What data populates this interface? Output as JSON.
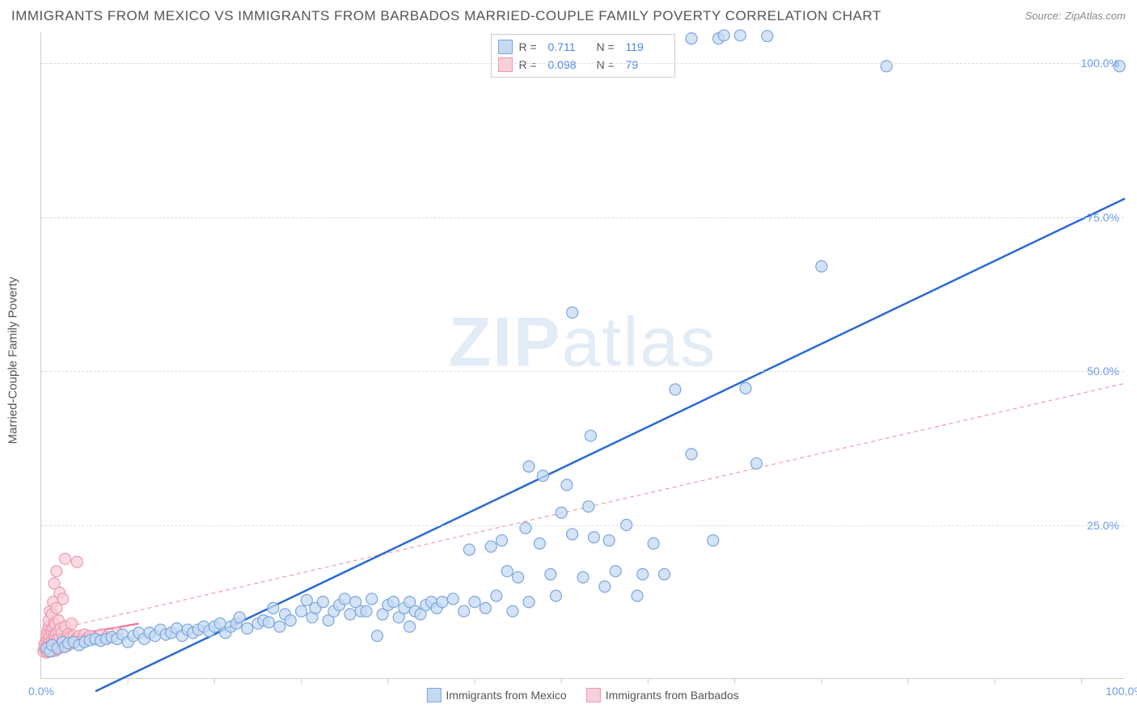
{
  "title": "IMMIGRANTS FROM MEXICO VS IMMIGRANTS FROM BARBADOS MARRIED-COUPLE FAMILY POVERTY CORRELATION CHART",
  "source_label": "Source:",
  "source_value": "ZipAtlas.com",
  "y_axis_label": "Married-Couple Family Poverty",
  "watermark_a": "ZIP",
  "watermark_b": "atlas",
  "chart": {
    "type": "scatter",
    "xlim": [
      0,
      100
    ],
    "ylim": [
      0,
      105
    ],
    "y_ticks": [
      25,
      50,
      75,
      100
    ],
    "y_tick_labels": [
      "25.0%",
      "50.0%",
      "75.0%",
      "100.0%"
    ],
    "x_ticks_labeled": [
      0,
      100
    ],
    "x_tick_labels": [
      "0.0%",
      "100.0%"
    ],
    "x_minor_ticks": [
      8,
      16,
      24,
      32,
      40,
      48,
      56,
      64,
      72,
      80,
      88,
      96
    ],
    "background_color": "#ffffff",
    "grid_color": "#dddddd",
    "marker_radius": 7,
    "marker_stroke_width": 1.2,
    "series": [
      {
        "name": "Immigrants from Mexico",
        "color_fill": "#c5d9f1",
        "color_stroke": "#7aa7e0",
        "r_value": "0.711",
        "n_value": "119",
        "trend": {
          "x1": 5,
          "y1": -2,
          "x2": 100,
          "y2": 78,
          "width": 2.5,
          "color": "#2a6ad4",
          "dash": ""
        },
        "points": [
          [
            0.5,
            5
          ],
          [
            0.8,
            4.5
          ],
          [
            1,
            5.5
          ],
          [
            1.5,
            5
          ],
          [
            2,
            6
          ],
          [
            2.2,
            5.2
          ],
          [
            2.5,
            5.8
          ],
          [
            3,
            6
          ],
          [
            3.5,
            5.5
          ],
          [
            4,
            6
          ],
          [
            4.5,
            6.3
          ],
          [
            5,
            6.5
          ],
          [
            5.5,
            6.2
          ],
          [
            6,
            6.5
          ],
          [
            6.5,
            6.8
          ],
          [
            7,
            6.5
          ],
          [
            7.5,
            7.2
          ],
          [
            8,
            6
          ],
          [
            8.5,
            7
          ],
          [
            9,
            7.5
          ],
          [
            9.5,
            6.5
          ],
          [
            10,
            7.5
          ],
          [
            10.5,
            7
          ],
          [
            11,
            8
          ],
          [
            11.5,
            7.2
          ],
          [
            12,
            7.5
          ],
          [
            12.5,
            8.2
          ],
          [
            13,
            7
          ],
          [
            13.5,
            8
          ],
          [
            14,
            7.5
          ],
          [
            14.5,
            8
          ],
          [
            15,
            8.5
          ],
          [
            15.5,
            7.8
          ],
          [
            16,
            8.5
          ],
          [
            16.5,
            9
          ],
          [
            17,
            7.5
          ],
          [
            17.5,
            8.5
          ],
          [
            18,
            9
          ],
          [
            18.3,
            10
          ],
          [
            19,
            8.2
          ],
          [
            20,
            9
          ],
          [
            20.5,
            9.5
          ],
          [
            21,
            9.2
          ],
          [
            21.4,
            11.5
          ],
          [
            22,
            8.5
          ],
          [
            22.5,
            10.5
          ],
          [
            23,
            9.5
          ],
          [
            24,
            11
          ],
          [
            24.5,
            12.8
          ],
          [
            25,
            10
          ],
          [
            25.3,
            11.5
          ],
          [
            26,
            12.5
          ],
          [
            26.5,
            9.5
          ],
          [
            27,
            11
          ],
          [
            27.5,
            12
          ],
          [
            28,
            13
          ],
          [
            28.5,
            10.5
          ],
          [
            29,
            12.5
          ],
          [
            29.5,
            11
          ],
          [
            30,
            11
          ],
          [
            30.5,
            13
          ],
          [
            31,
            7
          ],
          [
            31.5,
            10.5
          ],
          [
            32,
            12
          ],
          [
            32.5,
            12.5
          ],
          [
            33,
            10
          ],
          [
            33.5,
            11.5
          ],
          [
            34,
            12.5
          ],
          [
            34,
            8.5
          ],
          [
            34.5,
            11
          ],
          [
            35,
            10.5
          ],
          [
            35.5,
            12
          ],
          [
            36,
            12.5
          ],
          [
            36.5,
            11.5
          ],
          [
            37,
            12.5
          ],
          [
            38,
            13
          ],
          [
            39,
            11
          ],
          [
            39.5,
            21
          ],
          [
            40,
            12.5
          ],
          [
            41,
            11.5
          ],
          [
            41.5,
            21.5
          ],
          [
            42,
            13.5
          ],
          [
            42.5,
            22.5
          ],
          [
            43,
            17.5
          ],
          [
            43.5,
            11
          ],
          [
            44,
            16.5
          ],
          [
            44.7,
            24.5
          ],
          [
            45,
            12.5
          ],
          [
            45,
            34.5
          ],
          [
            46,
            22
          ],
          [
            46.3,
            33
          ],
          [
            47,
            17
          ],
          [
            47.5,
            13.5
          ],
          [
            48,
            27
          ],
          [
            48.5,
            31.5
          ],
          [
            49,
            23.5
          ],
          [
            49,
            59.5
          ],
          [
            50,
            16.5
          ],
          [
            50.5,
            28
          ],
          [
            50.7,
            39.5
          ],
          [
            51,
            23
          ],
          [
            52,
            15
          ],
          [
            52.4,
            22.5
          ],
          [
            53,
            17.5
          ],
          [
            54,
            25
          ],
          [
            55,
            13.5
          ],
          [
            55.5,
            17
          ],
          [
            56.5,
            22
          ],
          [
            57.5,
            17
          ],
          [
            58.5,
            47
          ],
          [
            60,
            36.5
          ],
          [
            60,
            104
          ],
          [
            62,
            22.5
          ],
          [
            62.5,
            104
          ],
          [
            63,
            104.5
          ],
          [
            64.5,
            104.5
          ],
          [
            65,
            47.2
          ],
          [
            66,
            35
          ],
          [
            67,
            104.4
          ],
          [
            72,
            67
          ],
          [
            78,
            99.5
          ],
          [
            99.5,
            99.5
          ]
        ]
      },
      {
        "name": "Immigrants from Barbados",
        "color_fill": "#f9cfd9",
        "color_stroke": "#ec9ab0",
        "r_value": "0.098",
        "n_value": "79",
        "trend": {
          "x1": 0,
          "y1": 7.5,
          "x2": 100,
          "y2": 48,
          "width": 1.2,
          "color": "#f19bb0",
          "dash": "5,4"
        },
        "solid_trend": {
          "x1": 0,
          "y1": 6.2,
          "x2": 9,
          "y2": 9,
          "width": 2.2,
          "color": "#ef6f94"
        },
        "points": [
          [
            0.2,
            4.5
          ],
          [
            0.3,
            5
          ],
          [
            0.3,
            5.5
          ],
          [
            0.4,
            6
          ],
          [
            0.4,
            4.7
          ],
          [
            0.5,
            5.2
          ],
          [
            0.5,
            6.5
          ],
          [
            0.5,
            7.2
          ],
          [
            0.5,
            4.3
          ],
          [
            0.6,
            5.8
          ],
          [
            0.6,
            7.8
          ],
          [
            0.6,
            4.5
          ],
          [
            0.7,
            5.5
          ],
          [
            0.7,
            6.5
          ],
          [
            0.7,
            8.5
          ],
          [
            0.7,
            9.5
          ],
          [
            0.8,
            5
          ],
          [
            0.8,
            6
          ],
          [
            0.8,
            7
          ],
          [
            0.8,
            11
          ],
          [
            0.9,
            5.5
          ],
          [
            0.9,
            8
          ],
          [
            0.9,
            4.8
          ],
          [
            1,
            5.3
          ],
          [
            1,
            6.2
          ],
          [
            1,
            7.5
          ],
          [
            1,
            10.5
          ],
          [
            1,
            4.5
          ],
          [
            1.1,
            5.8
          ],
          [
            1.1,
            8.3
          ],
          [
            1.1,
            12.5
          ],
          [
            1.2,
            5
          ],
          [
            1.2,
            6.3
          ],
          [
            1.2,
            7.2
          ],
          [
            1.2,
            9
          ],
          [
            1.2,
            15.5
          ],
          [
            1.3,
            5.5
          ],
          [
            1.3,
            6.8
          ],
          [
            1.3,
            8.8
          ],
          [
            1.3,
            4.6
          ],
          [
            1.4,
            5.3
          ],
          [
            1.4,
            7.5
          ],
          [
            1.4,
            11.5
          ],
          [
            1.4,
            17.5
          ],
          [
            1.5,
            5.8
          ],
          [
            1.5,
            6.5
          ],
          [
            1.5,
            4.8
          ],
          [
            1.6,
            5.5
          ],
          [
            1.6,
            7.8
          ],
          [
            1.6,
            9.5
          ],
          [
            1.7,
            5.2
          ],
          [
            1.7,
            6.8
          ],
          [
            1.7,
            14
          ],
          [
            1.8,
            5.5
          ],
          [
            1.8,
            8.2
          ],
          [
            1.9,
            5.8
          ],
          [
            1.9,
            7.5
          ],
          [
            2,
            5.2
          ],
          [
            2,
            6.5
          ],
          [
            2,
            13
          ],
          [
            2.2,
            8.5
          ],
          [
            2.2,
            19.5
          ],
          [
            2.3,
            6.5
          ],
          [
            2.5,
            7.2
          ],
          [
            2.5,
            5.5
          ],
          [
            2.7,
            6.8
          ],
          [
            2.8,
            9
          ],
          [
            3,
            7
          ],
          [
            3,
            5.8
          ],
          [
            3.2,
            6.5
          ],
          [
            3.3,
            19
          ],
          [
            3.5,
            7
          ],
          [
            3.7,
            6.3
          ],
          [
            4,
            7.2
          ],
          [
            4.2,
            6.5
          ],
          [
            4.5,
            7
          ],
          [
            5,
            6.5
          ],
          [
            5.5,
            7.2
          ],
          [
            6,
            6.8
          ],
          [
            7,
            7.5
          ]
        ]
      }
    ]
  },
  "legend_top": {
    "r_label": "R =",
    "n_label": "N ="
  },
  "legend_bottom": {
    "items": [
      "Immigrants from Mexico",
      "Immigrants from Barbados"
    ]
  }
}
